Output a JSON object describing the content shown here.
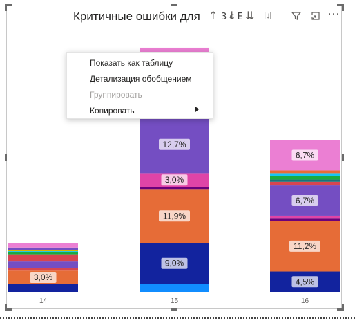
{
  "visual": {
    "title": "Критичные ошибки для",
    "title_partial": "3 с Е"
  },
  "toolbar": {
    "sort_asc_icon": "↑",
    "sort_desc_icon": "↓",
    "drill_icon": "⇊",
    "expand_icon": "⍗",
    "filter_icon": "filter-icon",
    "focus_icon": "focus-mode-icon",
    "more_icon": "⋯"
  },
  "context_menu": {
    "items": [
      {
        "label": "Показать как таблицу",
        "enabled": true
      },
      {
        "label": "Детализация обобщением",
        "enabled": true
      },
      {
        "label": "Группировать",
        "enabled": false
      },
      {
        "label": "Копировать",
        "enabled": true,
        "submenu": true
      }
    ]
  },
  "chart_data": {
    "type": "bar",
    "stacked": true,
    "categories": [
      "14",
      "15",
      "16"
    ],
    "stacks": [
      {
        "category": "14",
        "segments": [
          {
            "color": "#12239E",
            "value": 1.7
          },
          {
            "color": "#E66C37",
            "value": 3.0,
            "label": "3,0%"
          },
          {
            "color": "#D64550",
            "value": 0.5
          },
          {
            "color": "#744EC2",
            "value": 1.5
          },
          {
            "color": "#D64550",
            "value": 1.6
          },
          {
            "color": "#1AAB40",
            "value": 0.4
          },
          {
            "color": "#15C6F4",
            "value": 0.3
          },
          {
            "color": "#D9B300",
            "value": 0.3
          },
          {
            "color": "#744EC2",
            "value": 0.5
          },
          {
            "color": "#EB7FD3",
            "value": 1.0
          }
        ]
      },
      {
        "category": "15",
        "segments": [
          {
            "color": "#118DFF",
            "value": 1.8
          },
          {
            "color": "#12239E",
            "value": 9.0,
            "label": "9,0%"
          },
          {
            "color": "#E66C37",
            "value": 11.9,
            "label": "11,9%"
          },
          {
            "color": "#6B007B",
            "value": 0.5
          },
          {
            "color": "#E044A7",
            "value": 3.0,
            "label": "3,0%"
          },
          {
            "color": "#744EC2",
            "value": 12.7,
            "label": "12,7%"
          },
          {
            "color": "#EB7FD3",
            "value": 15.0
          }
        ]
      },
      {
        "category": "16",
        "segments": [
          {
            "color": "#12239E",
            "value": 4.5,
            "label": "4,5%"
          },
          {
            "color": "#E66C37",
            "value": 11.2,
            "label": "11,2%"
          },
          {
            "color": "#6B007B",
            "value": 0.6
          },
          {
            "color": "#E044A7",
            "value": 0.5
          },
          {
            "color": "#744EC2",
            "value": 6.7,
            "label": "6,7%"
          },
          {
            "color": "#D64550",
            "value": 0.8
          },
          {
            "color": "#197278",
            "value": 0.5
          },
          {
            "color": "#1AAB40",
            "value": 0.8
          },
          {
            "color": "#15C6F4",
            "value": 0.6
          },
          {
            "color": "#E66C37",
            "value": 0.6
          },
          {
            "color": "#EB7FD3",
            "value": 6.7,
            "label": "6,7%"
          }
        ]
      }
    ]
  }
}
